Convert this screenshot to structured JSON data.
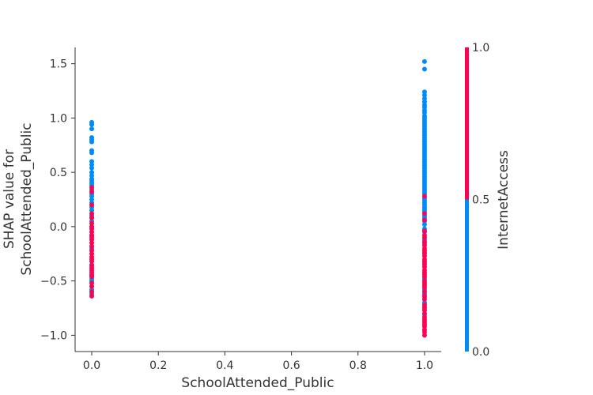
{
  "chart_data": {
    "type": "scatter",
    "title": "",
    "xlabel": "SchoolAttended_Public",
    "ylabel_line1": "SHAP value for",
    "ylabel_line2": "SchoolAttended_Public",
    "xlim": [
      -0.05,
      1.05
    ],
    "ylim": [
      -1.15,
      1.65
    ],
    "x_ticks": [
      0.0,
      0.2,
      0.4,
      0.6,
      0.8,
      1.0
    ],
    "x_tick_labels": [
      "0.0",
      "0.2",
      "0.4",
      "0.6",
      "0.8",
      "1.0"
    ],
    "y_ticks": [
      -1.0,
      -0.5,
      0.0,
      0.5,
      1.0,
      1.5
    ],
    "y_tick_labels": [
      "−1.0",
      "−0.5",
      "0.0",
      "0.5",
      "1.0",
      "1.5"
    ],
    "colorbar": {
      "label": "InternetAccess",
      "ticks": [
        0.0,
        0.5,
        1.0
      ],
      "tick_labels": [
        "0.0",
        "0.5",
        "1.0"
      ],
      "low_color": "#008bfb",
      "high_color": "#ff0052"
    },
    "series": [
      {
        "color_value": 0.0,
        "color": "#008bfb",
        "points": [
          [
            0,
            0.96
          ],
          [
            0,
            0.94
          ],
          [
            0,
            0.9
          ],
          [
            0,
            0.82
          ],
          [
            0,
            0.8
          ],
          [
            0,
            0.78
          ],
          [
            0,
            0.7
          ],
          [
            0,
            0.68
          ],
          [
            0,
            0.6
          ],
          [
            0,
            0.57
          ],
          [
            0,
            0.54
          ],
          [
            0,
            0.5
          ],
          [
            0,
            0.47
          ],
          [
            0,
            0.44
          ],
          [
            0,
            0.42
          ],
          [
            0,
            0.4
          ],
          [
            0,
            0.38
          ],
          [
            0,
            0.34
          ],
          [
            0,
            0.3
          ],
          [
            0,
            0.28
          ],
          [
            0,
            0.25
          ],
          [
            0,
            0.22
          ],
          [
            0,
            0.18
          ],
          [
            0,
            0.15
          ],
          [
            0,
            0.1
          ],
          [
            0,
            0.05
          ],
          [
            0,
            0.0
          ],
          [
            0,
            -0.08
          ],
          [
            0,
            -0.2
          ],
          [
            0,
            -0.35
          ],
          [
            0,
            -0.45
          ],
          [
            0,
            -0.48
          ],
          [
            0,
            -0.5
          ],
          [
            0,
            -0.58
          ],
          [
            0,
            -0.62
          ],
          [
            1,
            1.52
          ],
          [
            1,
            1.45
          ],
          [
            1,
            1.24
          ],
          [
            1,
            1.21
          ],
          [
            1,
            1.18
          ],
          [
            1,
            1.15
          ],
          [
            1,
            1.12
          ],
          [
            1,
            1.1
          ],
          [
            1,
            1.07
          ],
          [
            1,
            1.05
          ],
          [
            1,
            1.02
          ],
          [
            1,
            1.0
          ],
          [
            1,
            0.98
          ],
          [
            1,
            0.96
          ],
          [
            1,
            0.94
          ],
          [
            1,
            0.92
          ],
          [
            1,
            0.9
          ],
          [
            1,
            0.88
          ],
          [
            1,
            0.86
          ],
          [
            1,
            0.84
          ],
          [
            1,
            0.82
          ],
          [
            1,
            0.8
          ],
          [
            1,
            0.78
          ],
          [
            1,
            0.76
          ],
          [
            1,
            0.74
          ],
          [
            1,
            0.72
          ],
          [
            1,
            0.7
          ],
          [
            1,
            0.68
          ],
          [
            1,
            0.66
          ],
          [
            1,
            0.64
          ],
          [
            1,
            0.62
          ],
          [
            1,
            0.6
          ],
          [
            1,
            0.58
          ],
          [
            1,
            0.56
          ],
          [
            1,
            0.54
          ],
          [
            1,
            0.52
          ],
          [
            1,
            0.5
          ],
          [
            1,
            0.48
          ],
          [
            1,
            0.46
          ],
          [
            1,
            0.44
          ],
          [
            1,
            0.42
          ],
          [
            1,
            0.4
          ],
          [
            1,
            0.38
          ],
          [
            1,
            0.36
          ],
          [
            1,
            0.34
          ],
          [
            1,
            0.32
          ],
          [
            1,
            0.3
          ],
          [
            1,
            0.26
          ],
          [
            1,
            0.24
          ],
          [
            1,
            0.22
          ],
          [
            1,
            0.2
          ],
          [
            1,
            0.18
          ],
          [
            1,
            0.16
          ],
          [
            1,
            0.14
          ],
          [
            1,
            0.1
          ],
          [
            1,
            0.08
          ],
          [
            1,
            0.05
          ],
          [
            1,
            0.02
          ],
          [
            1,
            -0.02
          ],
          [
            1,
            -0.05
          ],
          [
            1,
            -0.12
          ],
          [
            1,
            -0.15
          ],
          [
            1,
            -0.25
          ],
          [
            1,
            -0.35
          ],
          [
            1,
            -0.48
          ],
          [
            1,
            -0.58
          ],
          [
            1,
            -0.62
          ],
          [
            1,
            -0.65
          ],
          [
            1,
            -0.7
          ],
          [
            1,
            -0.75
          ],
          [
            1,
            -0.82
          ]
        ]
      },
      {
        "color_value": 1.0,
        "color": "#ff0052",
        "points": [
          [
            0,
            0.36
          ],
          [
            0,
            0.32
          ],
          [
            0,
            0.2
          ],
          [
            0,
            0.12
          ],
          [
            0,
            0.08
          ],
          [
            0,
            0.03
          ],
          [
            0,
            0.0
          ],
          [
            0,
            -0.02
          ],
          [
            0,
            -0.05
          ],
          [
            0,
            -0.08
          ],
          [
            0,
            -0.1
          ],
          [
            0,
            -0.12
          ],
          [
            0,
            -0.15
          ],
          [
            0,
            -0.18
          ],
          [
            0,
            -0.22
          ],
          [
            0,
            -0.25
          ],
          [
            0,
            -0.28
          ],
          [
            0,
            -0.3
          ],
          [
            0,
            -0.32
          ],
          [
            0,
            -0.36
          ],
          [
            0,
            -0.38
          ],
          [
            0,
            -0.4
          ],
          [
            0,
            -0.42
          ],
          [
            0,
            -0.44
          ],
          [
            0,
            -0.46
          ],
          [
            0,
            -0.52
          ],
          [
            0,
            -0.55
          ],
          [
            0,
            -0.6
          ],
          [
            0,
            -0.64
          ],
          [
            1,
            0.28
          ],
          [
            1,
            0.12
          ],
          [
            1,
            0.06
          ],
          [
            1,
            -0.04
          ],
          [
            1,
            -0.08
          ],
          [
            1,
            -0.1
          ],
          [
            1,
            -0.14
          ],
          [
            1,
            -0.17
          ],
          [
            1,
            -0.2
          ],
          [
            1,
            -0.22
          ],
          [
            1,
            -0.24
          ],
          [
            1,
            -0.27
          ],
          [
            1,
            -0.3
          ],
          [
            1,
            -0.32
          ],
          [
            1,
            -0.34
          ],
          [
            1,
            -0.37
          ],
          [
            1,
            -0.4
          ],
          [
            1,
            -0.42
          ],
          [
            1,
            -0.44
          ],
          [
            1,
            -0.46
          ],
          [
            1,
            -0.5
          ],
          [
            1,
            -0.52
          ],
          [
            1,
            -0.54
          ],
          [
            1,
            -0.56
          ],
          [
            1,
            -0.6
          ],
          [
            1,
            -0.64
          ],
          [
            1,
            -0.67
          ],
          [
            1,
            -0.72
          ],
          [
            1,
            -0.74
          ],
          [
            1,
            -0.77
          ],
          [
            1,
            -0.8
          ],
          [
            1,
            -0.84
          ],
          [
            1,
            -0.86
          ],
          [
            1,
            -0.88
          ],
          [
            1,
            -0.9
          ],
          [
            1,
            -0.92
          ],
          [
            1,
            -0.95
          ],
          [
            1,
            -0.97
          ],
          [
            1,
            -1.0
          ]
        ]
      }
    ]
  }
}
